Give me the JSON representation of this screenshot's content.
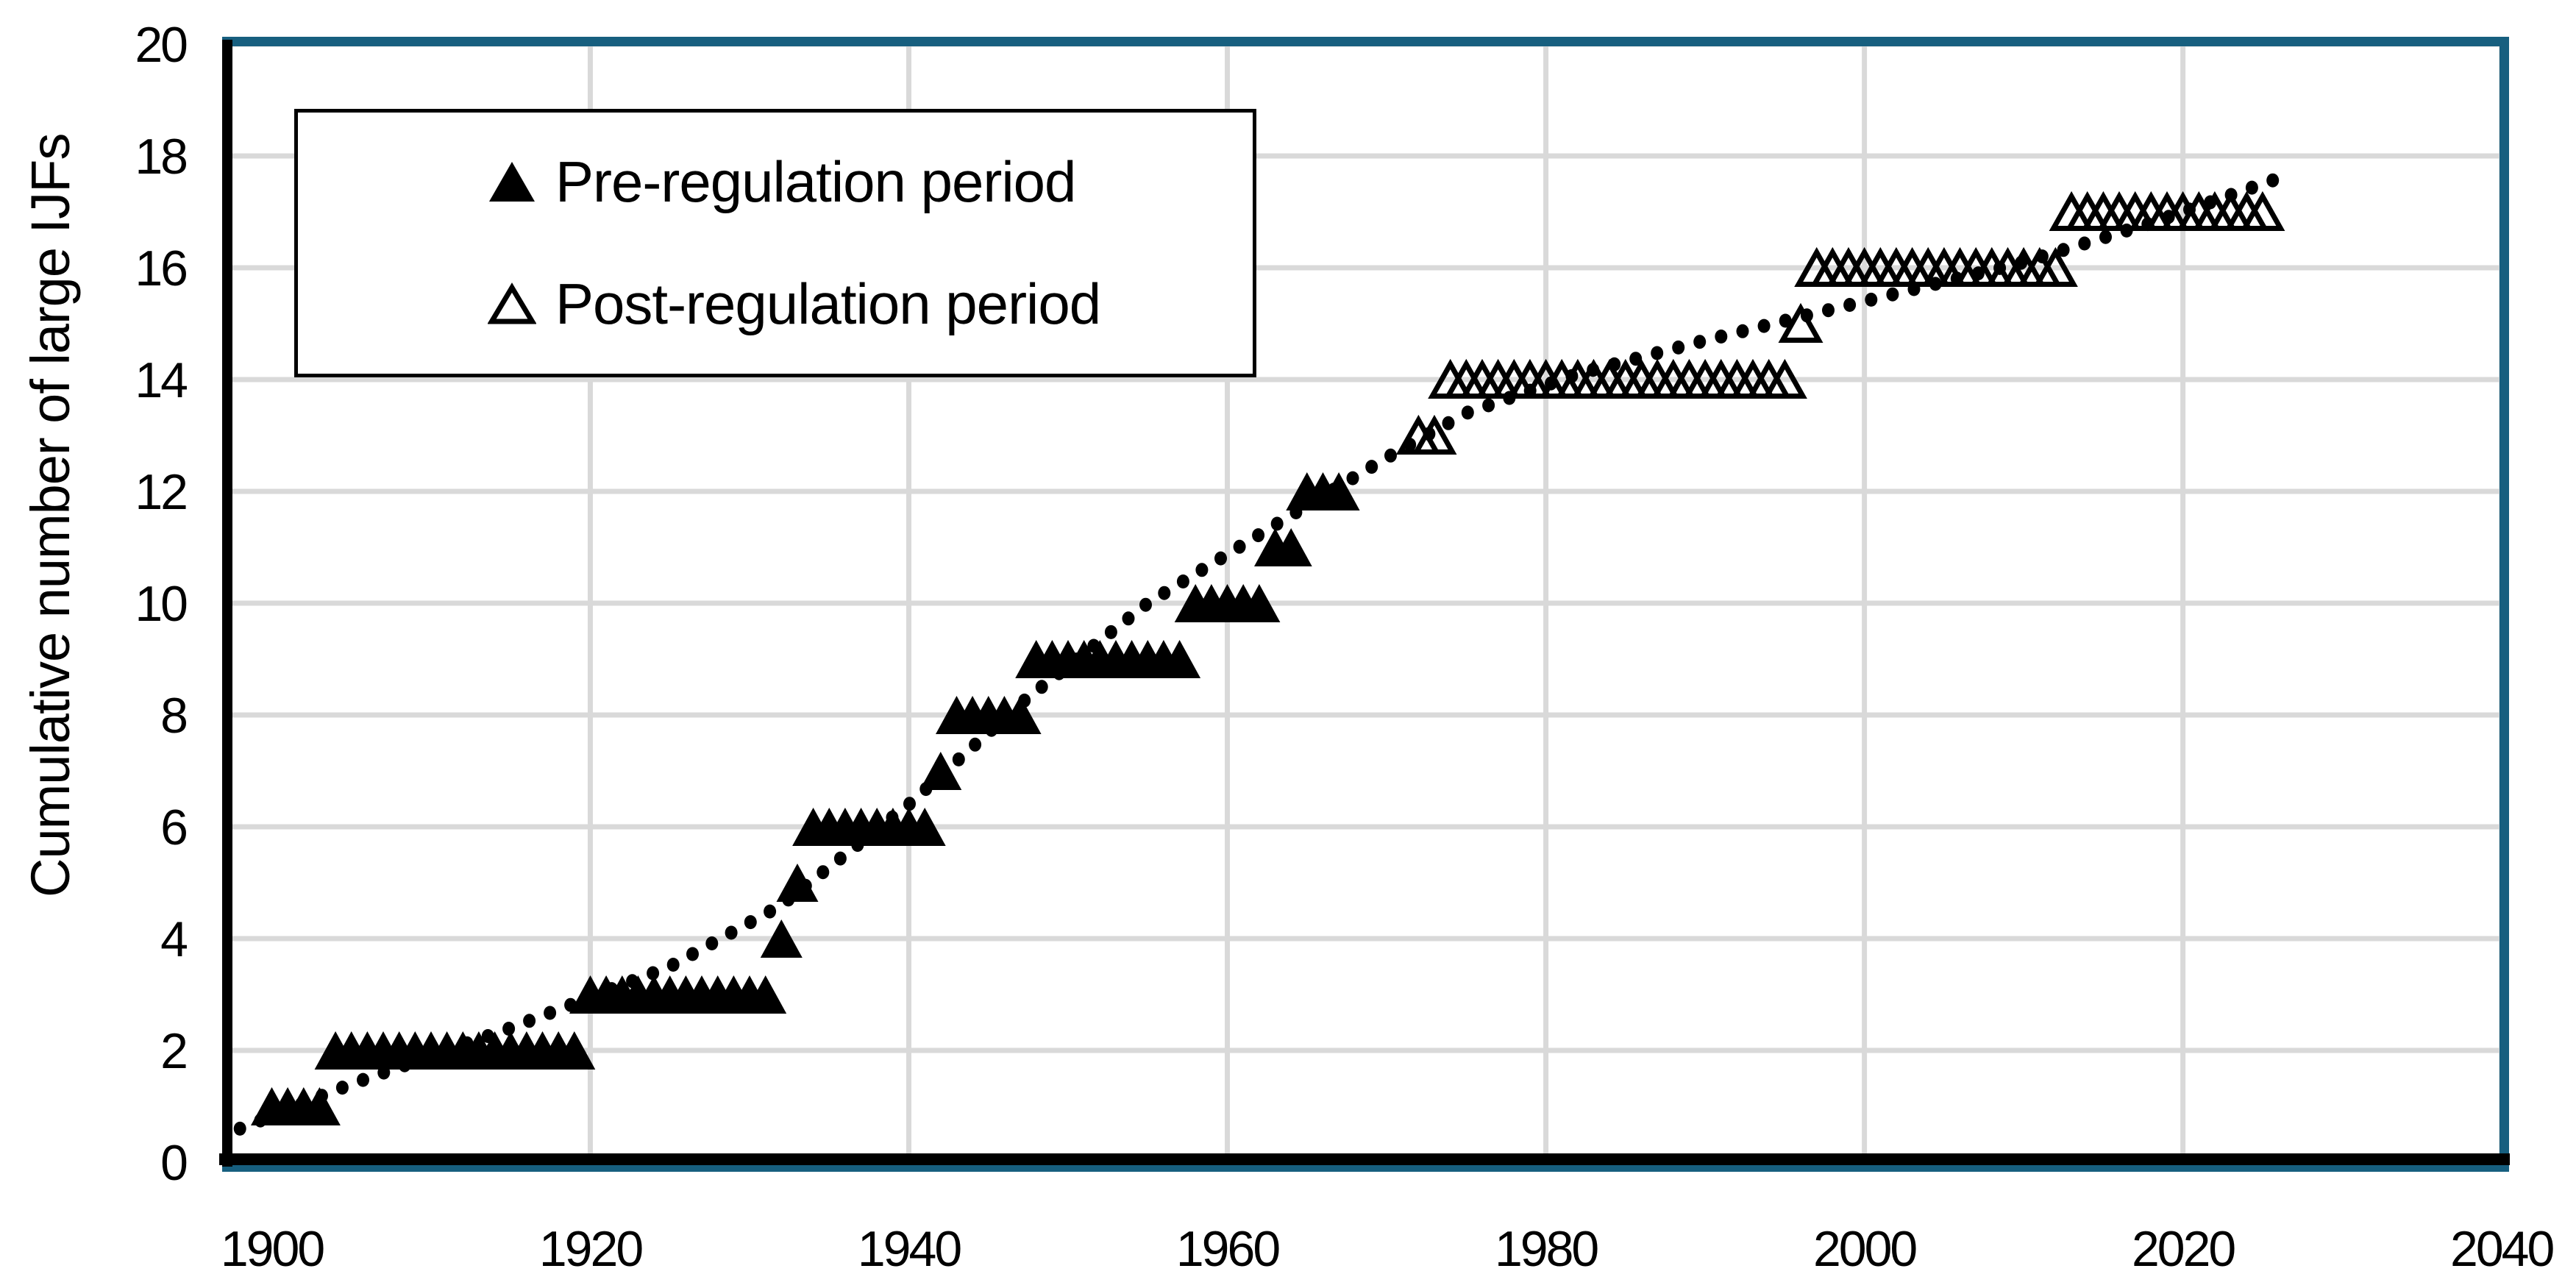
{
  "y_axis": {
    "title": "Cumulative number of large IJFs",
    "ticks": [
      0,
      2,
      4,
      6,
      8,
      10,
      12,
      14,
      16,
      18,
      20
    ]
  },
  "x_axis": {
    "ticks": [
      1900,
      1920,
      1940,
      1960,
      1980,
      2000,
      2020,
      2040
    ]
  },
  "legend": {
    "items": [
      {
        "label": "Pre-regulation period",
        "marker": "filled-triangle"
      },
      {
        "label": "Post-regulation period",
        "marker": "open-triangle"
      }
    ]
  },
  "colors": {
    "marker": "#000000",
    "gridline": "#D9D9D9",
    "chart_border": "#175F7F",
    "axis_line": "#000000",
    "background": "#FFFFFF",
    "legend_border": "#000000",
    "text": "#000000"
  },
  "chart_data": {
    "type": "scatter",
    "title": "",
    "xlabel": "",
    "ylabel": "Cumulative number of large IJFs",
    "xlim": [
      1897.3,
      2040.2
    ],
    "ylim": [
      0,
      20
    ],
    "grid": true,
    "legend_position": "top-left-inside",
    "series": [
      {
        "name": "Pre-regulation period",
        "marker": "filled-triangle",
        "points": [
          [
            1900,
            1
          ],
          [
            1901,
            1
          ],
          [
            1902,
            1
          ],
          [
            1903,
            1
          ],
          [
            1904,
            2
          ],
          [
            1905,
            2
          ],
          [
            1906,
            2
          ],
          [
            1907,
            2
          ],
          [
            1908,
            2
          ],
          [
            1909,
            2
          ],
          [
            1910,
            2
          ],
          [
            1911,
            2
          ],
          [
            1912,
            2
          ],
          [
            1913,
            2
          ],
          [
            1914,
            2
          ],
          [
            1915,
            2
          ],
          [
            1916,
            2
          ],
          [
            1917,
            2
          ],
          [
            1918,
            2
          ],
          [
            1919,
            2
          ],
          [
            1920,
            3
          ],
          [
            1921,
            3
          ],
          [
            1922,
            3
          ],
          [
            1923,
            3
          ],
          [
            1924,
            3
          ],
          [
            1925,
            3
          ],
          [
            1926,
            3
          ],
          [
            1927,
            3
          ],
          [
            1928,
            3
          ],
          [
            1929,
            3
          ],
          [
            1930,
            3
          ],
          [
            1931,
            3
          ],
          [
            1932,
            4
          ],
          [
            1933,
            5
          ],
          [
            1934,
            6
          ],
          [
            1935,
            6
          ],
          [
            1936,
            6
          ],
          [
            1937,
            6
          ],
          [
            1938,
            6
          ],
          [
            1939,
            6
          ],
          [
            1940,
            6
          ],
          [
            1941,
            6
          ],
          [
            1942,
            7
          ],
          [
            1943,
            8
          ],
          [
            1944,
            8
          ],
          [
            1945,
            8
          ],
          [
            1946,
            8
          ],
          [
            1947,
            8
          ],
          [
            1948,
            9
          ],
          [
            1949,
            9
          ],
          [
            1950,
            9
          ],
          [
            1951,
            9
          ],
          [
            1952,
            9
          ],
          [
            1953,
            9
          ],
          [
            1954,
            9
          ],
          [
            1955,
            9
          ],
          [
            1956,
            9
          ],
          [
            1957,
            9
          ],
          [
            1958,
            10
          ],
          [
            1959,
            10
          ],
          [
            1960,
            10
          ],
          [
            1961,
            10
          ],
          [
            1962,
            10
          ],
          [
            1963,
            11
          ],
          [
            1964,
            11
          ],
          [
            1965,
            12
          ],
          [
            1966,
            12
          ],
          [
            1967,
            12
          ]
        ]
      },
      {
        "name": "Post-regulation period",
        "marker": "open-triangle",
        "points": [
          [
            1972,
            13
          ],
          [
            1973,
            13
          ],
          [
            1974,
            14
          ],
          [
            1975,
            14
          ],
          [
            1976,
            14
          ],
          [
            1977,
            14
          ],
          [
            1978,
            14
          ],
          [
            1979,
            14
          ],
          [
            1980,
            14
          ],
          [
            1981,
            14
          ],
          [
            1982,
            14
          ],
          [
            1983,
            14
          ],
          [
            1984,
            14
          ],
          [
            1985,
            14
          ],
          [
            1986,
            14
          ],
          [
            1987,
            14
          ],
          [
            1988,
            14
          ],
          [
            1989,
            14
          ],
          [
            1990,
            14
          ],
          [
            1991,
            14
          ],
          [
            1992,
            14
          ],
          [
            1993,
            14
          ],
          [
            1994,
            14
          ],
          [
            1995,
            14
          ],
          [
            1996,
            15
          ],
          [
            1997,
            16
          ],
          [
            1998,
            16
          ],
          [
            1999,
            16
          ],
          [
            2000,
            16
          ],
          [
            2001,
            16
          ],
          [
            2002,
            16
          ],
          [
            2003,
            16
          ],
          [
            2004,
            16
          ],
          [
            2005,
            16
          ],
          [
            2006,
            16
          ],
          [
            2007,
            16
          ],
          [
            2008,
            16
          ],
          [
            2009,
            16
          ],
          [
            2010,
            16
          ],
          [
            2011,
            16
          ],
          [
            2012,
            16
          ],
          [
            2013,
            17
          ],
          [
            2014,
            17
          ],
          [
            2015,
            17
          ],
          [
            2016,
            17
          ],
          [
            2017,
            17
          ],
          [
            2018,
            17
          ],
          [
            2019,
            17
          ],
          [
            2020,
            17
          ],
          [
            2021,
            17
          ],
          [
            2022,
            17
          ],
          [
            2023,
            17
          ],
          [
            2024,
            17
          ],
          [
            2025,
            17
          ]
        ]
      },
      {
        "name": "trend",
        "style": "dotted",
        "points": [
          [
            1898,
            0.6
          ],
          [
            1905,
            1.4
          ],
          [
            1915,
            2.4
          ],
          [
            1925,
            3.5
          ],
          [
            1932,
            4.6
          ],
          [
            1940,
            6.4
          ],
          [
            1947,
            8.2
          ],
          [
            1955,
            10.0
          ],
          [
            1963,
            11.4
          ],
          [
            1970,
            12.6
          ],
          [
            1975,
            13.4
          ],
          [
            1982,
            14.1
          ],
          [
            1990,
            14.7
          ],
          [
            2000,
            15.4
          ],
          [
            2010,
            16.1
          ],
          [
            2018,
            16.8
          ],
          [
            2026,
            17.6
          ]
        ]
      }
    ]
  }
}
